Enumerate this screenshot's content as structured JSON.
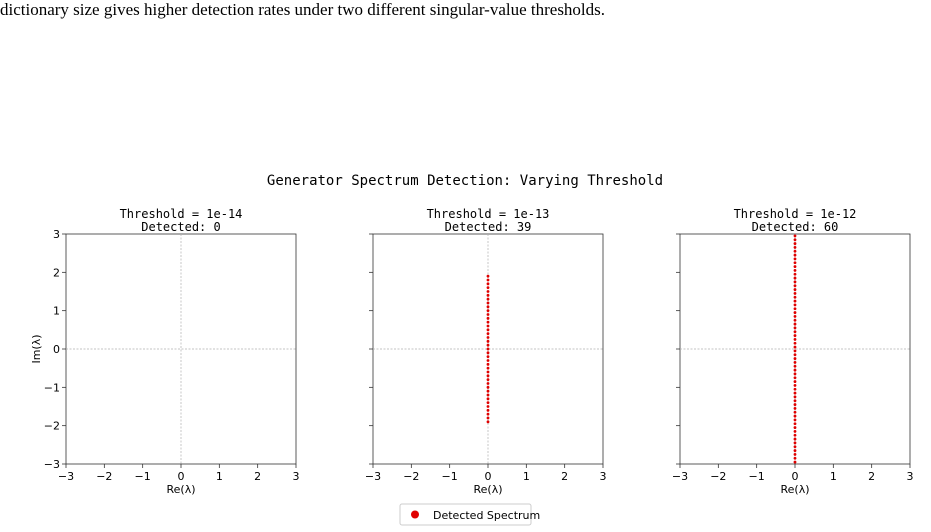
{
  "caption": "dictionary size gives higher detection rates under two different singular-value thresholds.",
  "figure_title": "Generator Spectrum Detection: Varying Threshold",
  "legend_label": "Detected Spectrum",
  "colors": {
    "points": "#e00000",
    "axes": "#333333",
    "guide": "#b0b0b0"
  },
  "chart_data": [
    {
      "type": "scatter",
      "title_line1": "Threshold = 1e-14",
      "title_line2": "Detected: 0",
      "xlabel": "Re(λ)",
      "ylabel": "Im(λ)",
      "xlim": [
        -3,
        3
      ],
      "ylim": [
        -3,
        3
      ],
      "xticks": [
        -3,
        -2,
        -1,
        0,
        1,
        2,
        3
      ],
      "yticks": [
        -3,
        -2,
        -1,
        0,
        1,
        2,
        3
      ],
      "tick_labels": [
        "−3",
        "−2",
        "−1",
        "0",
        "1",
        "2",
        "3"
      ],
      "show_yticklabels": true,
      "points": {
        "x": [],
        "y": []
      }
    },
    {
      "type": "scatter",
      "title_line1": "Threshold = 1e-13",
      "title_line2": "Detected: 39",
      "xlabel": "Re(λ)",
      "ylabel": "",
      "xlim": [
        -3,
        3
      ],
      "ylim": [
        -3,
        3
      ],
      "xticks": [
        -3,
        -2,
        -1,
        0,
        1,
        2,
        3
      ],
      "yticks": [
        -3,
        -2,
        -1,
        0,
        1,
        2,
        3
      ],
      "tick_labels": [
        "−3",
        "−2",
        "−1",
        "0",
        "1",
        "2",
        "3"
      ],
      "show_yticklabels": false,
      "points": {
        "x": [
          0,
          0,
          0,
          0,
          0,
          0,
          0,
          0,
          0,
          0,
          0,
          0,
          0,
          0,
          0,
          0,
          0,
          0,
          0,
          0,
          0,
          0,
          0,
          0,
          0,
          0,
          0,
          0,
          0,
          0,
          0,
          0,
          0,
          0,
          0,
          0,
          0,
          0,
          0
        ],
        "y": [
          -1.9,
          -1.8,
          -1.7,
          -1.6,
          -1.5,
          -1.4,
          -1.3,
          -1.2,
          -1.1,
          -1.0,
          -0.9,
          -0.8,
          -0.7,
          -0.6,
          -0.5,
          -0.4,
          -0.3,
          -0.2,
          -0.1,
          0,
          0.1,
          0.2,
          0.3,
          0.4,
          0.5,
          0.6,
          0.7,
          0.8,
          0.9,
          1.0,
          1.1,
          1.2,
          1.3,
          1.4,
          1.5,
          1.6,
          1.7,
          1.8,
          1.9
        ]
      }
    },
    {
      "type": "scatter",
      "title_line1": "Threshold = 1e-12",
      "title_line2": "Detected: 60",
      "xlabel": "Re(λ)",
      "ylabel": "",
      "xlim": [
        -3,
        3
      ],
      "ylim": [
        -3,
        3
      ],
      "xticks": [
        -3,
        -2,
        -1,
        0,
        1,
        2,
        3
      ],
      "yticks": [
        -3,
        -2,
        -1,
        0,
        1,
        2,
        3
      ],
      "tick_labels": [
        "−3",
        "−2",
        "−1",
        "0",
        "1",
        "2",
        "3"
      ],
      "show_yticklabels": false,
      "points": {
        "x": [
          0,
          0,
          0,
          0,
          0,
          0,
          0,
          0,
          0,
          0,
          0,
          0,
          0,
          0,
          0,
          0,
          0,
          0,
          0,
          0,
          0,
          0,
          0,
          0,
          0,
          0,
          0,
          0,
          0,
          0,
          0,
          0,
          0,
          0,
          0,
          0,
          0,
          0,
          0,
          0,
          0,
          0,
          0,
          0,
          0,
          0,
          0,
          0,
          0,
          0,
          0,
          0,
          0,
          0,
          0,
          0,
          0,
          0,
          0,
          0
        ],
        "y": [
          -2.95,
          -2.85,
          -2.75,
          -2.65,
          -2.55,
          -2.45,
          -2.35,
          -2.25,
          -2.15,
          -2.05,
          -1.95,
          -1.85,
          -1.75,
          -1.65,
          -1.55,
          -1.45,
          -1.35,
          -1.25,
          -1.15,
          -1.05,
          -0.95,
          -0.85,
          -0.75,
          -0.65,
          -0.55,
          -0.45,
          -0.35,
          -0.25,
          -0.15,
          -0.05,
          0.05,
          0.15,
          0.25,
          0.35,
          0.45,
          0.55,
          0.65,
          0.75,
          0.85,
          0.95,
          1.05,
          1.15,
          1.25,
          1.35,
          1.45,
          1.55,
          1.65,
          1.75,
          1.85,
          1.95,
          2.05,
          2.15,
          2.25,
          2.35,
          2.45,
          2.55,
          2.65,
          2.75,
          2.85,
          2.95
        ]
      }
    }
  ]
}
